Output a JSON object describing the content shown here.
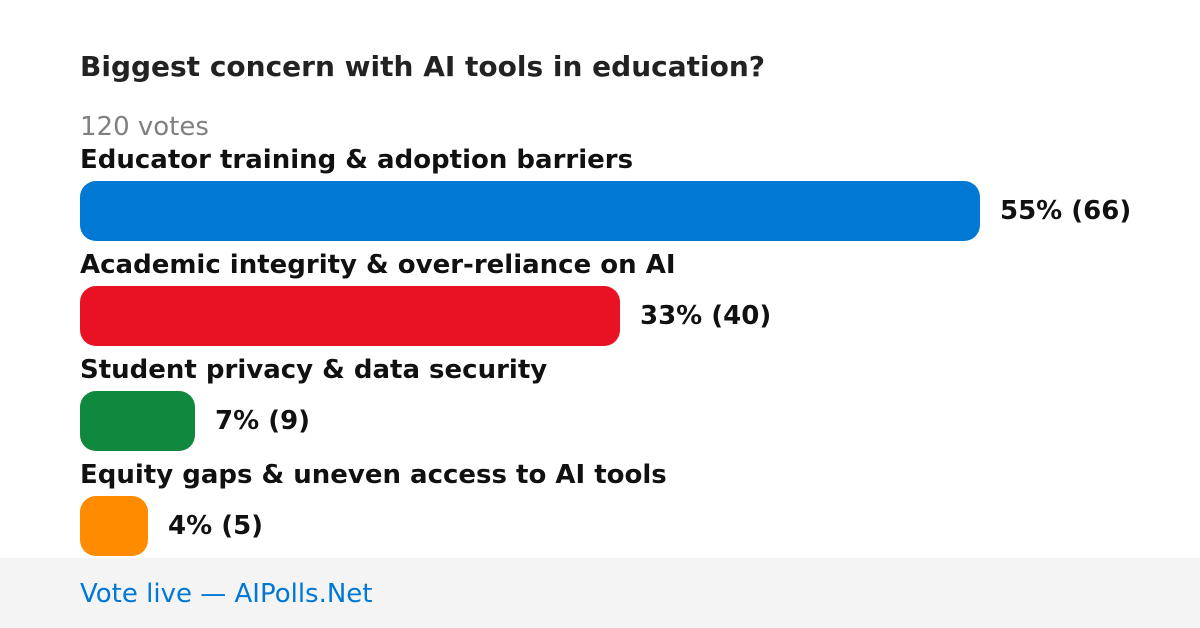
{
  "title": "Biggest concern with AI tools in education?",
  "vote_count": "120 votes",
  "footer": {
    "link_text": "Vote live — AIPolls.Net"
  },
  "chart_data": {
    "type": "bar",
    "orientation": "horizontal",
    "title": "Biggest concern with AI tools in education?",
    "total_votes": 120,
    "categories": [
      "Educator training & adoption barriers",
      "Academic integrity & over-reliance on AI",
      "Student privacy & data security",
      "Equity gaps & uneven access to AI tools"
    ],
    "values": [
      55,
      33,
      7,
      4
    ],
    "votes": [
      66,
      40,
      9,
      5
    ],
    "result_labels": [
      "55% (66)",
      "33% (40)",
      "7% (9)",
      "4% (5)"
    ],
    "colors": [
      "#0078d4",
      "#e81224",
      "#10893e",
      "#ff8c00"
    ],
    "ylim": [
      0,
      55
    ]
  }
}
